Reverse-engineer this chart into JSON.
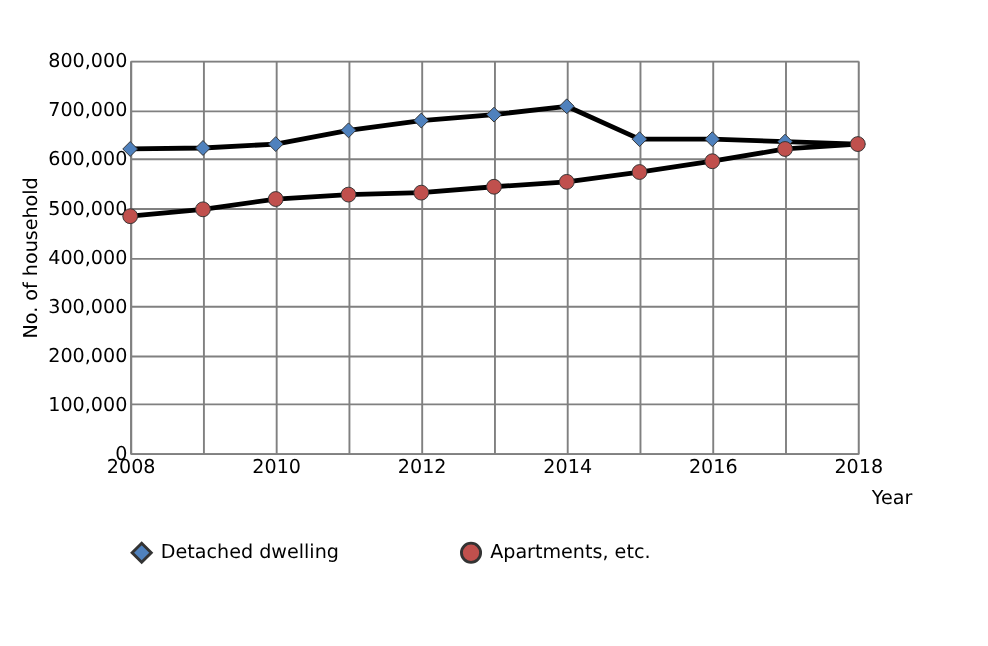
{
  "chart_data": {
    "type": "line",
    "xlabel": "Year",
    "ylabel": "No. of household",
    "categories": [
      "2008",
      null,
      "2010",
      null,
      "2012",
      null,
      "2014",
      null,
      "2016",
      null,
      "2018"
    ],
    "series": [
      {
        "name": "Detached dwelling",
        "color": "#4f81bd",
        "marker": "diamond",
        "values": [
          620000,
          622000,
          630000,
          658000,
          678000,
          690000,
          707000,
          640000,
          640000,
          635000,
          630000
        ]
      },
      {
        "name": "Apartments, etc.",
        "color": "#c0504d",
        "marker": "circle",
        "values": [
          483000,
          497000,
          518000,
          527000,
          531000,
          543000,
          553000,
          573000,
          595000,
          620000,
          630000
        ]
      }
    ],
    "ylim": [
      0,
      800000
    ],
    "yticks": [
      0,
      {
        "value": 100000,
        "label": "100,000"
      },
      {
        "value": 200000,
        "label": "200,000"
      },
      {
        "value": 300000,
        "label": "300,000"
      },
      {
        "value": 400000,
        "label": "400,000"
      },
      {
        "value": 500000,
        "label": "500,000"
      },
      {
        "value": 600000,
        "label": "600,000"
      },
      {
        "value": 700000,
        "label": "700,000"
      },
      {
        "value": 800000,
        "label": "800,000"
      }
    ],
    "grid": true,
    "legend": "bottom",
    "line_style": "solid"
  }
}
